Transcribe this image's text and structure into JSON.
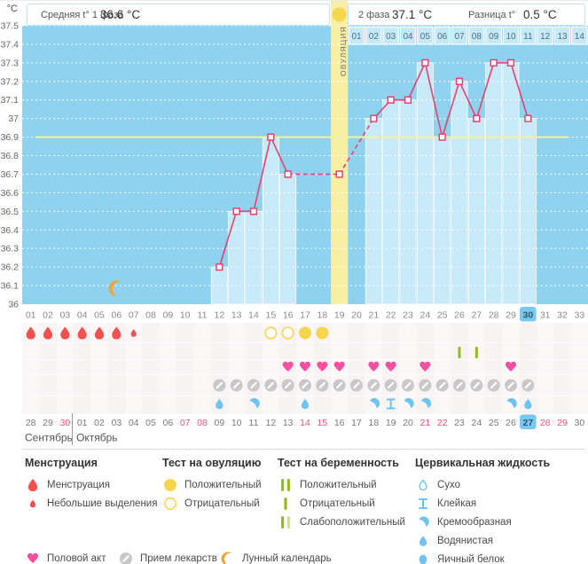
{
  "header": {
    "unit": "°C",
    "phase1_label": "Средняя t° 1 фаза",
    "phase1_value": "36.6 °C",
    "ovulation_column_label": "ОВУЛЯЦИЯ",
    "phase2_label": "2 фаза",
    "phase2_value": "37.1 °C",
    "diff_label": "Разница t°",
    "diff_value": "0.5 °C"
  },
  "chart_data": {
    "type": "line",
    "title": "Basal body temperature cycle chart",
    "ylabel": "°C",
    "ylim": [
      36.0,
      37.5
    ],
    "ytick_step": 0.1,
    "ytick_labels": [
      "37.5",
      "37.4",
      "37.3",
      "37.2",
      "37.1",
      "37",
      "36.9",
      "36.8",
      "36.7",
      "36.6",
      "36.5",
      "36.4",
      "36.3",
      "36.2",
      "36.1",
      "36"
    ],
    "x_cycle_days": [
      "01",
      "02",
      "03",
      "04",
      "05",
      "06",
      "07",
      "08",
      "09",
      "10",
      "11",
      "12",
      "13",
      "14",
      "15",
      "16",
      "17",
      "18",
      "19",
      "20",
      "21",
      "22",
      "23",
      "24",
      "25",
      "26",
      "27",
      "28",
      "29",
      "30",
      "31",
      "32",
      "33"
    ],
    "phase2_day_labels": [
      "01",
      "02",
      "03",
      "04",
      "05",
      "06",
      "07",
      "08",
      "09",
      "10",
      "11",
      "12",
      "13",
      "14"
    ],
    "coverline_temp": 36.9,
    "ovulation_cycle_day": 19,
    "current_cycle_day": 30,
    "moon_icon_day": 6,
    "grid": "dotted-horizontal",
    "legend_position": "bottom",
    "points": [
      {
        "day": 12,
        "temp": 36.2
      },
      {
        "day": 13,
        "temp": 36.5
      },
      {
        "day": 14,
        "temp": 36.5
      },
      {
        "day": 15,
        "temp": 36.9
      },
      {
        "day": 16,
        "temp": 36.7
      },
      {
        "day": 19,
        "temp": 36.7
      },
      {
        "day": 21,
        "temp": 37.0
      },
      {
        "day": 22,
        "temp": 37.1
      },
      {
        "day": 23,
        "temp": 37.1
      },
      {
        "day": 24,
        "temp": 37.3
      },
      {
        "day": 25,
        "temp": 36.9
      },
      {
        "day": 26,
        "temp": 37.2
      },
      {
        "day": 27,
        "temp": 37.0
      },
      {
        "day": 28,
        "temp": 37.3
      },
      {
        "day": 29,
        "temp": 37.3
      },
      {
        "day": 30,
        "temp": 37.0
      }
    ],
    "missing_days_interpolated_dashed": [
      17,
      18,
      20
    ]
  },
  "symbol_rows": {
    "menstruation": [
      {
        "day": 1,
        "type": "full"
      },
      {
        "day": 2,
        "type": "full"
      },
      {
        "day": 3,
        "type": "full"
      },
      {
        "day": 4,
        "type": "full"
      },
      {
        "day": 5,
        "type": "full"
      },
      {
        "day": 6,
        "type": "full"
      },
      {
        "day": 7,
        "type": "spotting"
      }
    ],
    "ovulation_tests": [
      {
        "day": 15,
        "result": "negative"
      },
      {
        "day": 16,
        "result": "negative"
      },
      {
        "day": 17,
        "result": "positive"
      },
      {
        "day": 18,
        "result": "positive"
      }
    ],
    "pregnancy_tests": [
      {
        "day": 26,
        "result": "negative"
      },
      {
        "day": 27,
        "result": "negative"
      }
    ],
    "intercourse_days": [
      16,
      17,
      18,
      19,
      21,
      22,
      24,
      29
    ],
    "medication_days": [
      12,
      13,
      14,
      15,
      16,
      17,
      18,
      19,
      20,
      21,
      22,
      23,
      24,
      25,
      26,
      27,
      28,
      29,
      30
    ],
    "cervical_fluid": [
      {
        "day": 12,
        "type": "watery"
      },
      {
        "day": 14,
        "type": "creamy"
      },
      {
        "day": 17,
        "type": "watery"
      },
      {
        "day": 21,
        "type": "creamy"
      },
      {
        "day": 22,
        "type": "sticky"
      },
      {
        "day": 23,
        "type": "creamy"
      },
      {
        "day": 24,
        "type": "creamy"
      },
      {
        "day": 29,
        "type": "creamy"
      },
      {
        "day": 30,
        "type": "watery"
      }
    ]
  },
  "calendar": {
    "dates": [
      "28",
      "29",
      "30",
      "01",
      "02",
      "03",
      "04",
      "05",
      "06",
      "07",
      "08",
      "09",
      "10",
      "11",
      "12",
      "13",
      "14",
      "15",
      "16",
      "17",
      "18",
      "19",
      "20",
      "21",
      "22",
      "23",
      "24",
      "25",
      "26",
      "27",
      "28",
      "29",
      "30"
    ],
    "weekend_cycle_days": [
      3,
      10,
      11,
      17,
      18,
      24,
      25,
      31,
      32
    ],
    "today_cycle_day": 30,
    "months": [
      {
        "label": "Сентябрь",
        "from_day": 1,
        "to_day": 3
      },
      {
        "label": "Октябрь",
        "from_day": 4,
        "to_day": 33
      }
    ]
  },
  "legend": {
    "columns": [
      {
        "title": "Менструация",
        "items": [
          {
            "icon": "drop-large",
            "label": "Менструация"
          },
          {
            "icon": "drop-small",
            "label": "Небольшие выделения"
          }
        ]
      },
      {
        "title": "Тест на овуляцию",
        "items": [
          {
            "icon": "circle-filled",
            "label": "Положительный"
          },
          {
            "icon": "circle-outline",
            "label": "Отрицательный"
          }
        ]
      },
      {
        "title": "Тест на беременность",
        "items": [
          {
            "icon": "bars-two",
            "label": "Положительный"
          },
          {
            "icon": "bar-one",
            "label": "Отрицательный"
          },
          {
            "icon": "bars-weak",
            "label": "Слабоположительный"
          }
        ]
      },
      {
        "title": "Цервикальная жидкость",
        "items": [
          {
            "icon": "drop-outline",
            "label": "Сухо"
          },
          {
            "icon": "sticky",
            "label": "Клейкая"
          },
          {
            "icon": "creamy",
            "label": "Кремообразная"
          },
          {
            "icon": "watery",
            "label": "Водянистая"
          },
          {
            "icon": "eggwhite",
            "label": "Яичный белок"
          }
        ]
      }
    ],
    "footer_items": [
      {
        "icon": "heart",
        "label": "Половой акт"
      },
      {
        "icon": "pill",
        "label": "Прием лекарств"
      },
      {
        "icon": "moon",
        "label": "Лунный календарь"
      }
    ]
  },
  "colors": {
    "plot_bg": "#8ED2EF",
    "bar_fill": "#C8E9F8",
    "ovulation_column": "#F8EFA4",
    "ovulation_circle": "#F7D54E",
    "grid_line": "#FFFFFF",
    "coverline": "#F2F2A0",
    "temp_line": "#E8416F",
    "menstruation": "#F4504F",
    "ovu_test": "#F6D44D",
    "pregnancy": "#92BC1F",
    "pregnancy_weak": "#CDE09A",
    "heart": "#FA4FA0",
    "pill": "#C9C8C8",
    "cervical": "#6FC3F0",
    "moon": "#F2A338",
    "weekend_text": "#EE5276",
    "today_chip": "#77C9F1",
    "symbol_area_bg": "#F7F3F2",
    "header_border": "#BEE3F2"
  }
}
